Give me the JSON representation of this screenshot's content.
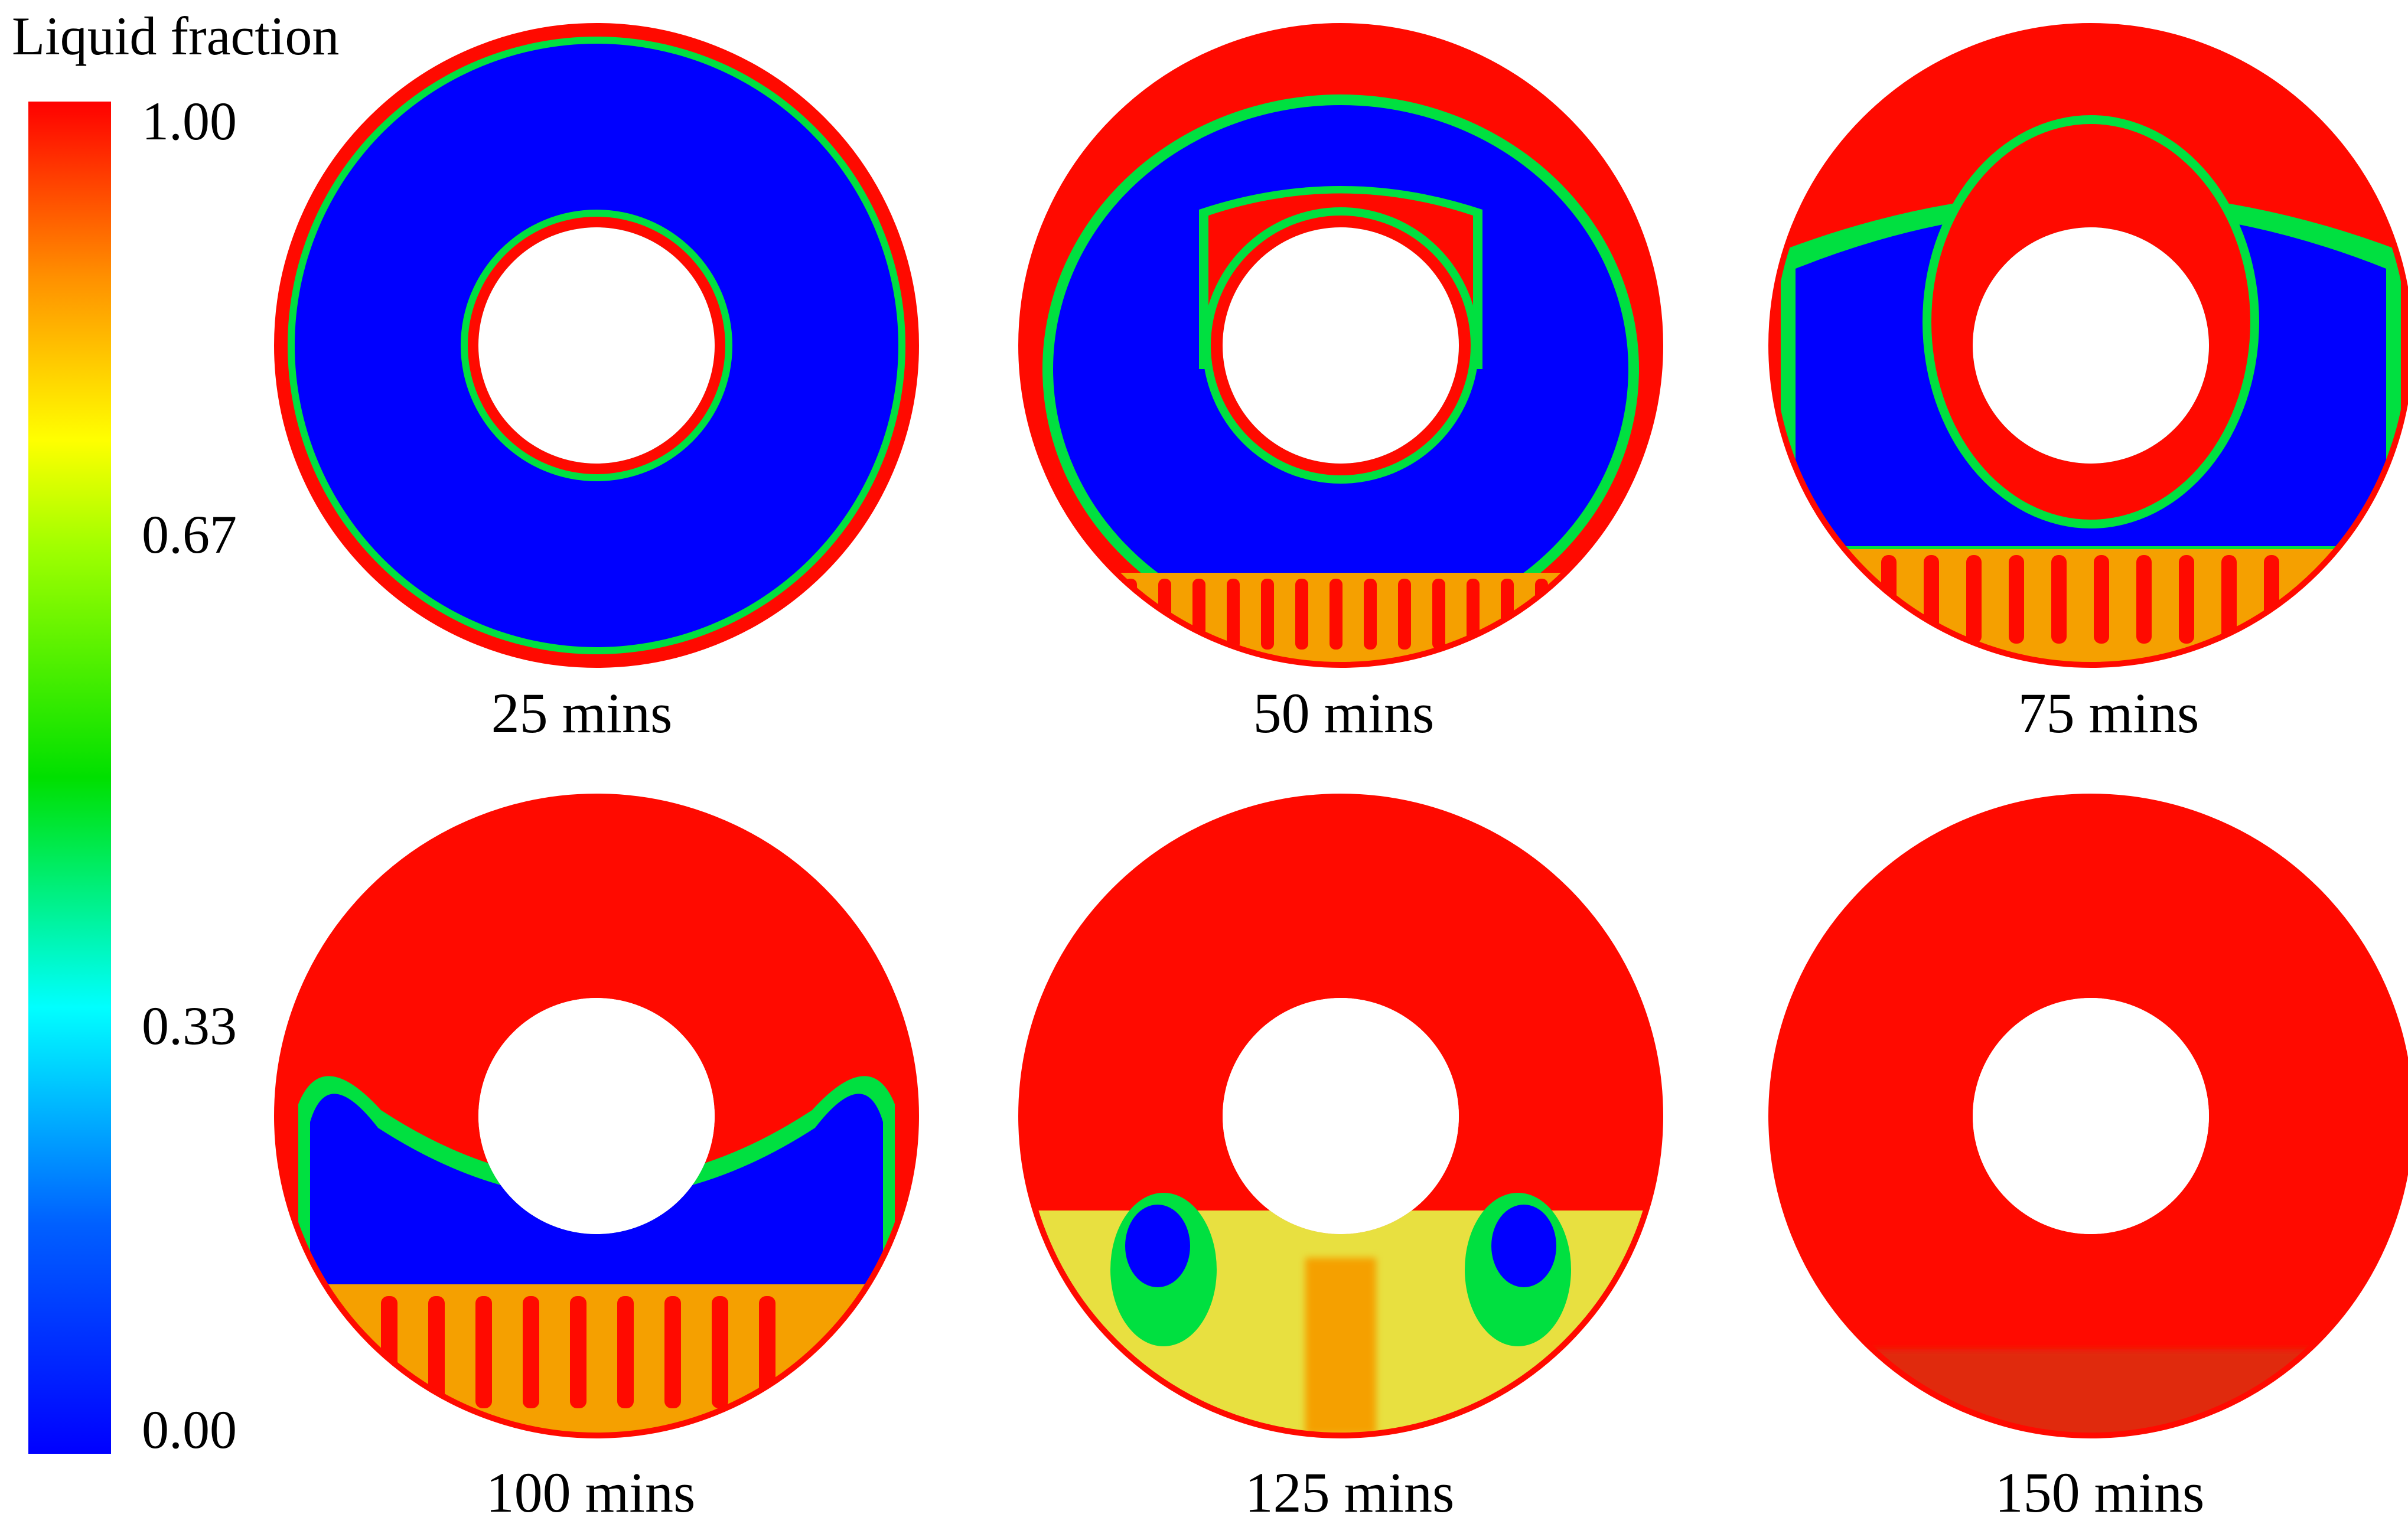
{
  "colorbar": {
    "title": "Liquid fraction",
    "ticks": [
      "1.00",
      "0.67",
      "0.33",
      "0.00"
    ],
    "range": [
      0,
      1
    ],
    "colors": [
      "#0000ff",
      "#0080ff",
      "#00ffff",
      "#00ff00",
      "#ffff00",
      "#ff8000",
      "#ff0000"
    ]
  },
  "colors": {
    "solid": "#0000ff",
    "liquid": "#ff0a00",
    "mushy": "#f5a000",
    "mushy_light": "#e8e040",
    "interface": "#00e040"
  },
  "panels": [
    {
      "label": "25 mins",
      "melt_state": "thin liquid layers at outer and inner walls",
      "liquid_fraction_approx": 0.05
    },
    {
      "label": "50 mins",
      "melt_state": "liquid cap above tube, convection cells at bottom",
      "liquid_fraction_approx": 0.25
    },
    {
      "label": "75 mins",
      "melt_state": "large liquid region on top, mushy zone at bottom",
      "liquid_fraction_approx": 0.5
    },
    {
      "label": "100 mins",
      "melt_state": "solid crescent below tube",
      "liquid_fraction_approx": 0.75
    },
    {
      "label": "125 mins",
      "melt_state": "mushy region at bottom",
      "liquid_fraction_approx": 0.9
    },
    {
      "label": "150 mins",
      "melt_state": "almost fully melted",
      "liquid_fraction_approx": 0.99
    }
  ]
}
